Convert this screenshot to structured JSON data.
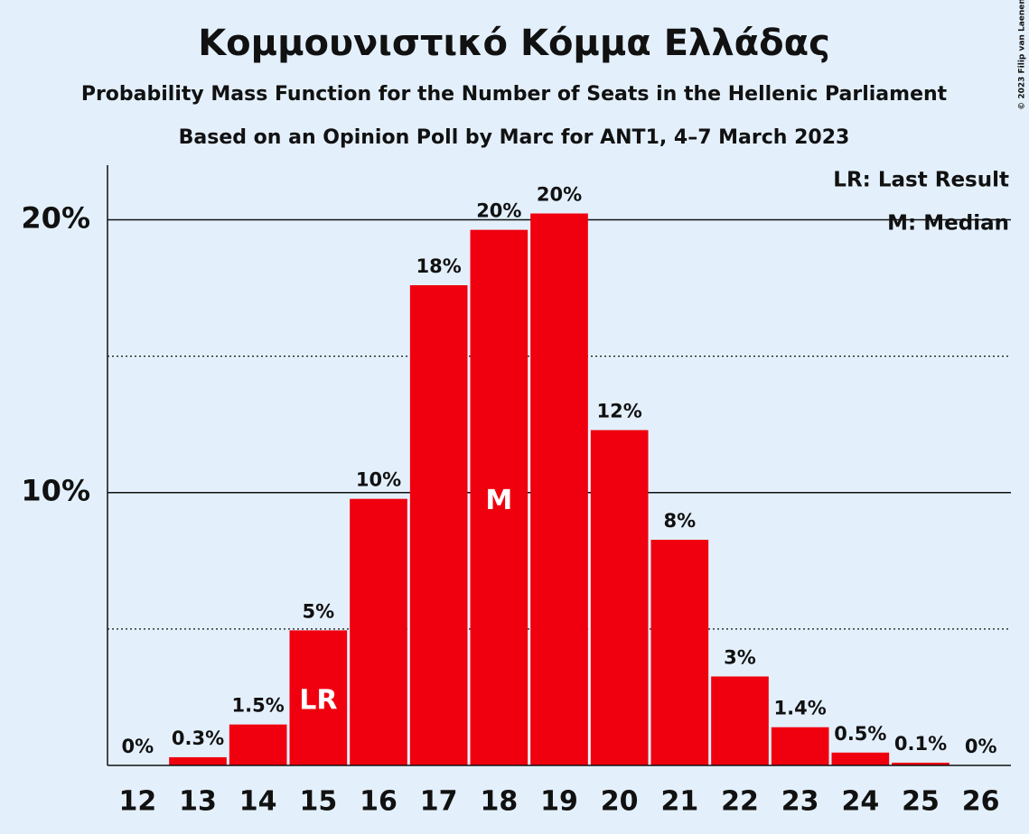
{
  "chart_data": {
    "type": "bar",
    "title": "Κομμουνιστικό Κόμμα Ελλάδας",
    "subtitle": "Probability Mass Function for the Number of Seats in the Hellenic Parliament",
    "subtitle2": "Based on an Opinion Poll by Marc for ANT1, 4–7 March 2023",
    "copyright": "© 2023 Filip van Laenen",
    "categories": [
      "12",
      "13",
      "14",
      "15",
      "16",
      "17",
      "18",
      "19",
      "20",
      "21",
      "22",
      "23",
      "24",
      "25",
      "26"
    ],
    "values": [
      0,
      0.3,
      1.5,
      4.95,
      9.77,
      17.6,
      19.63,
      20.23,
      12.29,
      8.27,
      3.26,
      1.4,
      0.47,
      0.1,
      0
    ],
    "value_labels": [
      "0%",
      "0.3%",
      "1.5%",
      "5%",
      "10%",
      "18%",
      "20%",
      "20%",
      "12%",
      "8%",
      "3%",
      "1.4%",
      "0.5%",
      "0.1%",
      "0%"
    ],
    "color": "#f0000f",
    "ylim": [
      0,
      22
    ],
    "yticks": [
      {
        "value": 10,
        "label": "10%"
      },
      {
        "value": 20,
        "label": "20%"
      }
    ],
    "minor_yticks": [
      5,
      15
    ],
    "grid": true,
    "annotations": [
      {
        "text": "LR",
        "category": "15"
      },
      {
        "text": "M",
        "category": "18"
      }
    ],
    "legend": [
      "LR: Last Result",
      "M: Median"
    ]
  }
}
